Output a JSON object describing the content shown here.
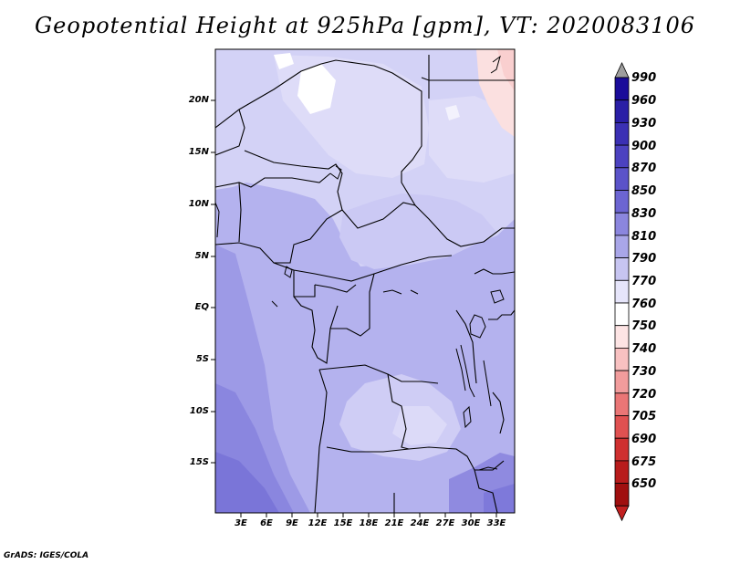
{
  "title": "Geopotential Height at 925hPa [gpm], VT: 2020083106",
  "credit": "GrADS: IGES/COLA",
  "map": {
    "lat_labels": [
      "20N",
      "15N",
      "10N",
      "5N",
      "EQ",
      "5S",
      "10S",
      "15S"
    ],
    "lon_labels": [
      "3E",
      "6E",
      "9E",
      "12E",
      "15E",
      "18E",
      "21E",
      "24E",
      "27E",
      "30E",
      "33E"
    ]
  },
  "colorbar": {
    "levels": [
      "990",
      "960",
      "930",
      "900",
      "870",
      "850",
      "830",
      "810",
      "790",
      "770",
      "760",
      "750",
      "740",
      "730",
      "720",
      "705",
      "690",
      "675",
      "650"
    ],
    "colors": [
      "#9e9e9e",
      "#1a0c9a",
      "#2a1fa6",
      "#3b30b4",
      "#4c42c0",
      "#5b53c9",
      "#6c65d2",
      "#8b86de",
      "#a9a6e8",
      "#c7c5f1",
      "#e6e5fa",
      "#ffffff",
      "#fde4e4",
      "#f8c1c1",
      "#f19c9c",
      "#ea7676",
      "#e05151",
      "#cf3030",
      "#b81c1c",
      "#a00f0f",
      "#c22020"
    ]
  }
}
